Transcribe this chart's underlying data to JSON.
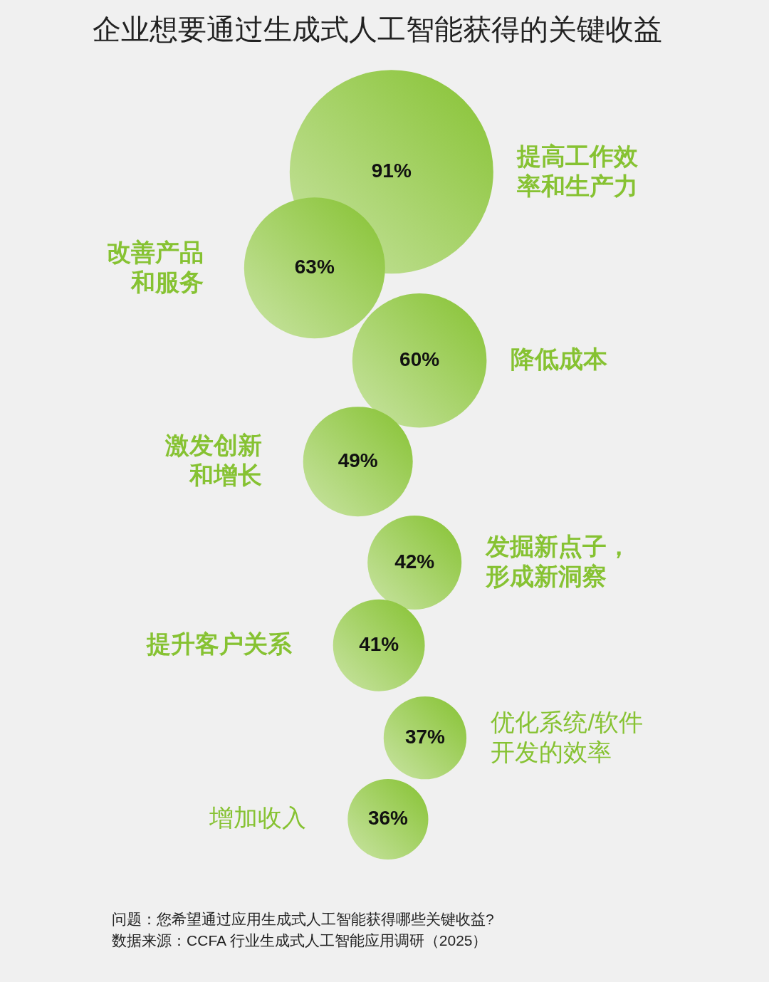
{
  "chart_data": {
    "type": "other",
    "title": "企业想要通过生成式人工智能获得的关键收益",
    "categories": [
      "提高工作效率和生产力",
      "改善产品和服务",
      "降低成本",
      "激发创新和增长",
      "发掘新点子，形成新洞察",
      "提升客户关系",
      "优化系统/软件开发的效率",
      "增加收入"
    ],
    "values": [
      91,
      63,
      60,
      49,
      42,
      41,
      37,
      36
    ],
    "value_labels": [
      "91%",
      "63%",
      "60%",
      "49%",
      "42%",
      "41%",
      "37%",
      "36%"
    ],
    "color": "#86c232",
    "annotations": [
      "问题：您希望通过应用生成式人工智能获得哪些关键收益?",
      "数据来源：CCFA 行业生成式人工智能应用调研（2025）"
    ]
  }
}
